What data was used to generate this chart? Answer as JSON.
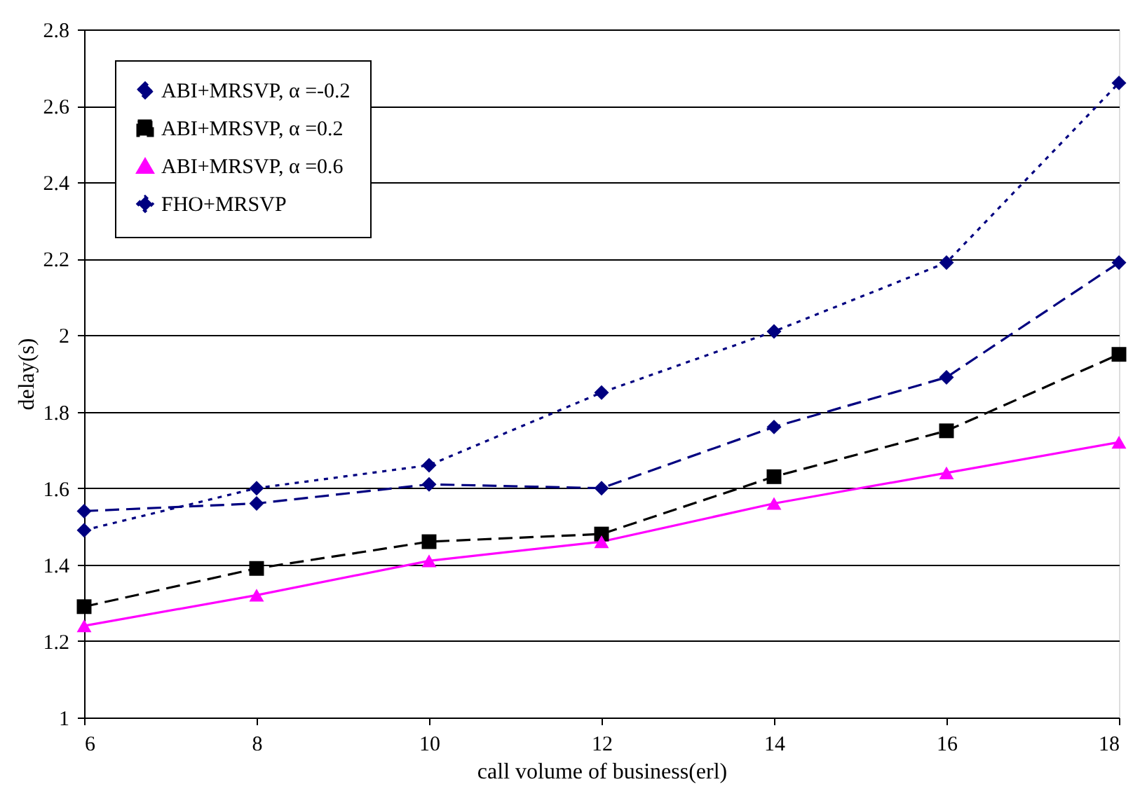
{
  "chart_data": {
    "type": "line",
    "xlabel": "call volume of business(erl)",
    "ylabel": "delay(s)",
    "x": [
      6,
      8,
      10,
      12,
      14,
      16,
      18
    ],
    "xlim": [
      6,
      18
    ],
    "xticks": [
      6,
      8,
      10,
      12,
      14,
      16,
      18
    ],
    "ylim": [
      1,
      2.8
    ],
    "yticks": [
      1,
      1.2,
      1.4,
      1.6,
      1.8,
      2,
      2.2,
      2.4,
      2.6,
      2.8
    ],
    "grid": "y",
    "legend": "top left",
    "series": [
      {
        "name": "ABI+MRSVP, α =-0.2",
        "color": "#000080",
        "marker": "diamond",
        "line_style": "dashed",
        "values": [
          1.54,
          1.56,
          1.61,
          1.6,
          1.76,
          1.89,
          2.19
        ]
      },
      {
        "name": "ABI+MRSVP, α =0.2",
        "color": "#000000",
        "marker": "square",
        "line_style": "dashed",
        "values": [
          1.29,
          1.39,
          1.46,
          1.48,
          1.63,
          1.75,
          1.95
        ]
      },
      {
        "name": "ABI+MRSVP, α =0.6",
        "color": "#ff00ff",
        "marker": "triangle",
        "line_style": "solid",
        "values": [
          1.24,
          1.32,
          1.41,
          1.46,
          1.56,
          1.64,
          1.72
        ]
      },
      {
        "name": "FHO+MRSVP",
        "color": "#000080",
        "marker": "diamond",
        "line_style": "dotted",
        "values": [
          1.49,
          1.6,
          1.66,
          1.85,
          2.01,
          2.19,
          2.66
        ]
      }
    ]
  }
}
